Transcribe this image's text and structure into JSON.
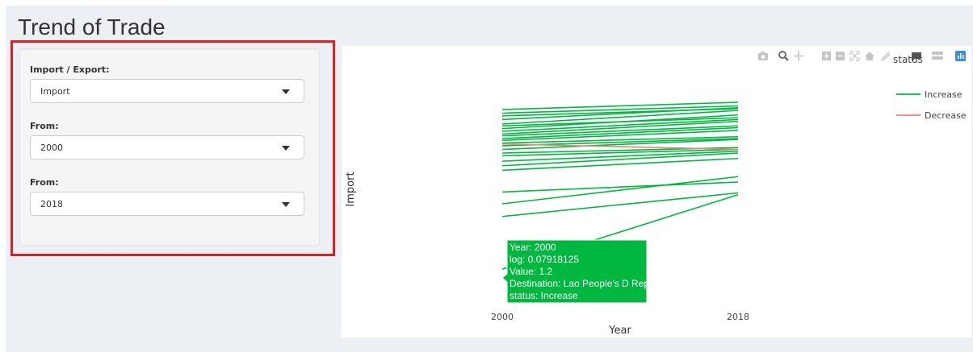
{
  "page": {
    "title": "Trend of Trade"
  },
  "sidebar": {
    "fields": [
      {
        "label": "Import / Export:",
        "value": "Import"
      },
      {
        "label": "From:",
        "value": "2000"
      },
      {
        "label": "From:",
        "value": "2018"
      }
    ]
  },
  "modebar": {
    "icons": [
      "camera-icon",
      "zoom-icon",
      "pan-icon",
      "zoom-in-icon",
      "zoom-out-icon",
      "autoscale-icon",
      "reset-axes-icon",
      "spike-lines-icon",
      "hover-closest-icon",
      "hover-compare-icon",
      "plotly-logo-icon"
    ]
  },
  "chart_data": {
    "type": "line",
    "xlabel": "Year",
    "ylabel": "Import",
    "x": [
      "2000",
      "2018"
    ],
    "legend_title": "status",
    "legend_position": "top-right",
    "legend": [
      {
        "name": "Increase",
        "color": "#00b83f"
      },
      {
        "name": "Decrease",
        "color": "#f08080"
      }
    ],
    "grid": false,
    "y_scale": "log",
    "y_axis_ticks_shown": false,
    "series": [
      {
        "status": "Increase",
        "values": [
          0.96,
          1.0
        ]
      },
      {
        "status": "Increase",
        "values": [
          0.94,
          0.98
        ]
      },
      {
        "status": "Increase",
        "values": [
          0.925,
          0.965
        ]
      },
      {
        "status": "Increase",
        "values": [
          0.905,
          0.97
        ]
      },
      {
        "status": "Increase",
        "values": [
          0.88,
          0.955
        ]
      },
      {
        "status": "Increase",
        "values": [
          0.87,
          0.915
        ]
      },
      {
        "status": "Increase",
        "values": [
          0.855,
          0.93
        ]
      },
      {
        "status": "Increase",
        "values": [
          0.84,
          0.905
        ]
      },
      {
        "status": "Increase",
        "values": [
          0.825,
          0.895
        ]
      },
      {
        "status": "Increase",
        "values": [
          0.815,
          0.87
        ]
      },
      {
        "status": "Increase",
        "values": [
          0.8,
          0.86
        ]
      },
      {
        "status": "Increase",
        "values": [
          0.79,
          0.845
        ]
      },
      {
        "status": "Increase",
        "values": [
          0.775,
          0.81
        ]
      },
      {
        "status": "Increase",
        "values": [
          0.76,
          0.8
        ]
      },
      {
        "status": "Increase",
        "values": [
          0.74,
          0.795
        ]
      },
      {
        "status": "Increase",
        "values": [
          0.72,
          0.75
        ]
      },
      {
        "status": "Increase",
        "values": [
          0.705,
          0.74
        ]
      },
      {
        "status": "Increase",
        "values": [
          0.675,
          0.73
        ]
      },
      {
        "status": "Increase",
        "values": [
          0.65,
          0.72
        ]
      },
      {
        "status": "Increase",
        "values": [
          0.625,
          0.69
        ]
      },
      {
        "status": "Increase",
        "values": [
          0.505,
          0.56
        ]
      },
      {
        "status": "Increase",
        "values": [
          0.44,
          0.59
        ]
      },
      {
        "status": "Increase",
        "values": [
          0.37,
          0.5
        ]
      },
      {
        "status": "Increase",
        "values": [
          0.07918125,
          0.49
        ]
      },
      {
        "status": "Decrease",
        "values": [
          0.77,
          0.74
        ]
      }
    ],
    "tooltip": {
      "lines": [
        "Year: 2000",
        "log:  0.07918125",
        "Value:     1.2",
        "Destination: Lao People's D Rep",
        "status: Increase"
      ],
      "color": "#00b83f"
    }
  }
}
